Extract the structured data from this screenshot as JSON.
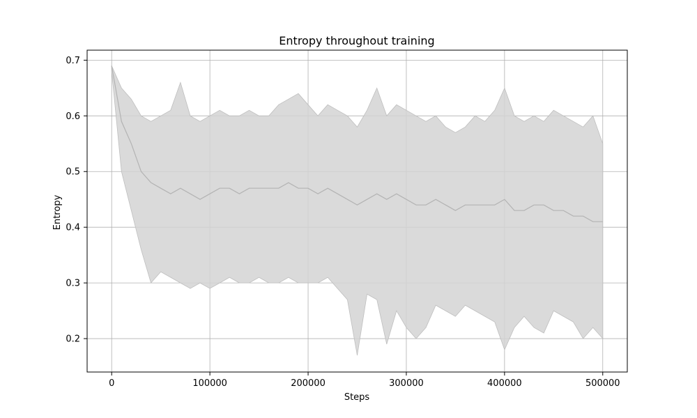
{
  "chart_data": {
    "type": "line",
    "title": "Entropy throughout training",
    "xlabel": "Steps",
    "ylabel": "Entropy",
    "xlim": [
      -25000,
      525000
    ],
    "ylim": [
      0.14,
      0.718
    ],
    "grid": true,
    "xticks": [
      0,
      100000,
      200000,
      300000,
      400000,
      500000
    ],
    "yticks": [
      0.2,
      0.3,
      0.4,
      0.5,
      0.6,
      0.7
    ],
    "colors": {
      "band": "#d3d3d3",
      "band_edge": "#bebebe",
      "line": "#b3b3b3",
      "grid": "#b0b0b0"
    },
    "series": [
      {
        "x": [
          0,
          10000,
          20000,
          30000,
          40000,
          50000,
          60000,
          70000,
          80000,
          90000,
          100000,
          110000,
          120000,
          130000,
          140000,
          150000,
          160000,
          170000,
          180000,
          190000,
          200000,
          210000,
          220000,
          230000,
          240000,
          250000,
          260000,
          270000,
          280000,
          290000,
          300000,
          310000,
          320000,
          330000,
          340000,
          350000,
          360000,
          370000,
          380000,
          390000,
          400000,
          410000,
          420000,
          430000,
          440000,
          450000,
          460000,
          470000,
          480000,
          490000,
          500000
        ],
        "mean": [
          0.69,
          0.59,
          0.55,
          0.5,
          0.48,
          0.47,
          0.46,
          0.47,
          0.46,
          0.45,
          0.46,
          0.47,
          0.47,
          0.46,
          0.47,
          0.47,
          0.47,
          0.47,
          0.48,
          0.47,
          0.47,
          0.46,
          0.47,
          0.46,
          0.45,
          0.44,
          0.45,
          0.46,
          0.45,
          0.46,
          0.45,
          0.44,
          0.44,
          0.45,
          0.44,
          0.43,
          0.44,
          0.44,
          0.44,
          0.44,
          0.45,
          0.43,
          0.43,
          0.44,
          0.44,
          0.43,
          0.43,
          0.42,
          0.42,
          0.41,
          0.41
        ],
        "upper": [
          0.69,
          0.65,
          0.63,
          0.6,
          0.59,
          0.6,
          0.61,
          0.66,
          0.6,
          0.59,
          0.6,
          0.61,
          0.6,
          0.6,
          0.61,
          0.6,
          0.6,
          0.62,
          0.63,
          0.64,
          0.62,
          0.6,
          0.62,
          0.61,
          0.6,
          0.58,
          0.61,
          0.65,
          0.6,
          0.62,
          0.61,
          0.6,
          0.59,
          0.6,
          0.58,
          0.57,
          0.58,
          0.6,
          0.59,
          0.61,
          0.65,
          0.6,
          0.59,
          0.6,
          0.59,
          0.61,
          0.6,
          0.59,
          0.58,
          0.6,
          0.55
        ],
        "lower": [
          0.68,
          0.5,
          0.43,
          0.36,
          0.3,
          0.32,
          0.31,
          0.3,
          0.29,
          0.3,
          0.29,
          0.3,
          0.31,
          0.3,
          0.3,
          0.31,
          0.3,
          0.3,
          0.31,
          0.3,
          0.3,
          0.3,
          0.31,
          0.29,
          0.27,
          0.17,
          0.28,
          0.27,
          0.19,
          0.25,
          0.22,
          0.2,
          0.22,
          0.26,
          0.25,
          0.24,
          0.26,
          0.25,
          0.24,
          0.23,
          0.18,
          0.22,
          0.24,
          0.22,
          0.21,
          0.25,
          0.24,
          0.23,
          0.2,
          0.22,
          0.2
        ]
      }
    ]
  }
}
